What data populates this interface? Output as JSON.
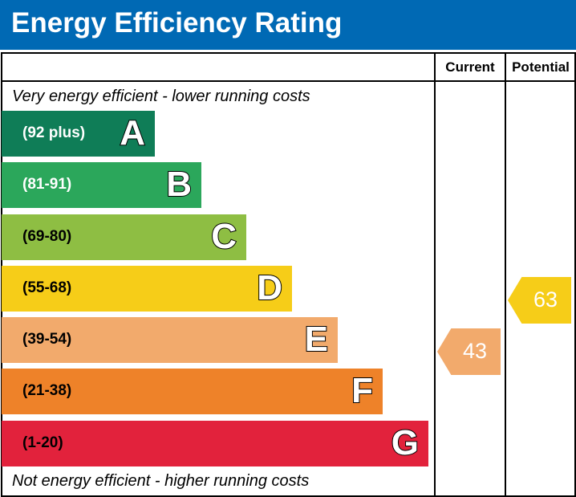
{
  "header": {
    "title": "Energy Efficiency Rating"
  },
  "chart_data": {
    "type": "bar",
    "columns": [
      "Current",
      "Potential"
    ],
    "top_note": "Very energy efficient - lower running costs",
    "bottom_note": "Not energy efficient - higher running costs",
    "bands": [
      {
        "letter": "A",
        "range": "(92 plus)",
        "color": "#0f7d57",
        "text_color": "#ffffff"
      },
      {
        "letter": "B",
        "range": "(81-91)",
        "color": "#2ba75b",
        "text_color": "#ffffff"
      },
      {
        "letter": "C",
        "range": "(69-80)",
        "color": "#8ebe43",
        "text_color": "#000000"
      },
      {
        "letter": "D",
        "range": "(55-68)",
        "color": "#f6cd18",
        "text_color": "#000000"
      },
      {
        "letter": "E",
        "range": "(39-54)",
        "color": "#f2aa6c",
        "text_color": "#000000"
      },
      {
        "letter": "F",
        "range": "(21-38)",
        "color": "#ee8229",
        "text_color": "#000000"
      },
      {
        "letter": "G",
        "range": "(1-20)",
        "color": "#e2223c",
        "text_color": "#000000"
      }
    ],
    "current": {
      "value": 43,
      "band": "E",
      "label": "43"
    },
    "potential": {
      "value": 63,
      "band": "D",
      "label": "63"
    }
  }
}
